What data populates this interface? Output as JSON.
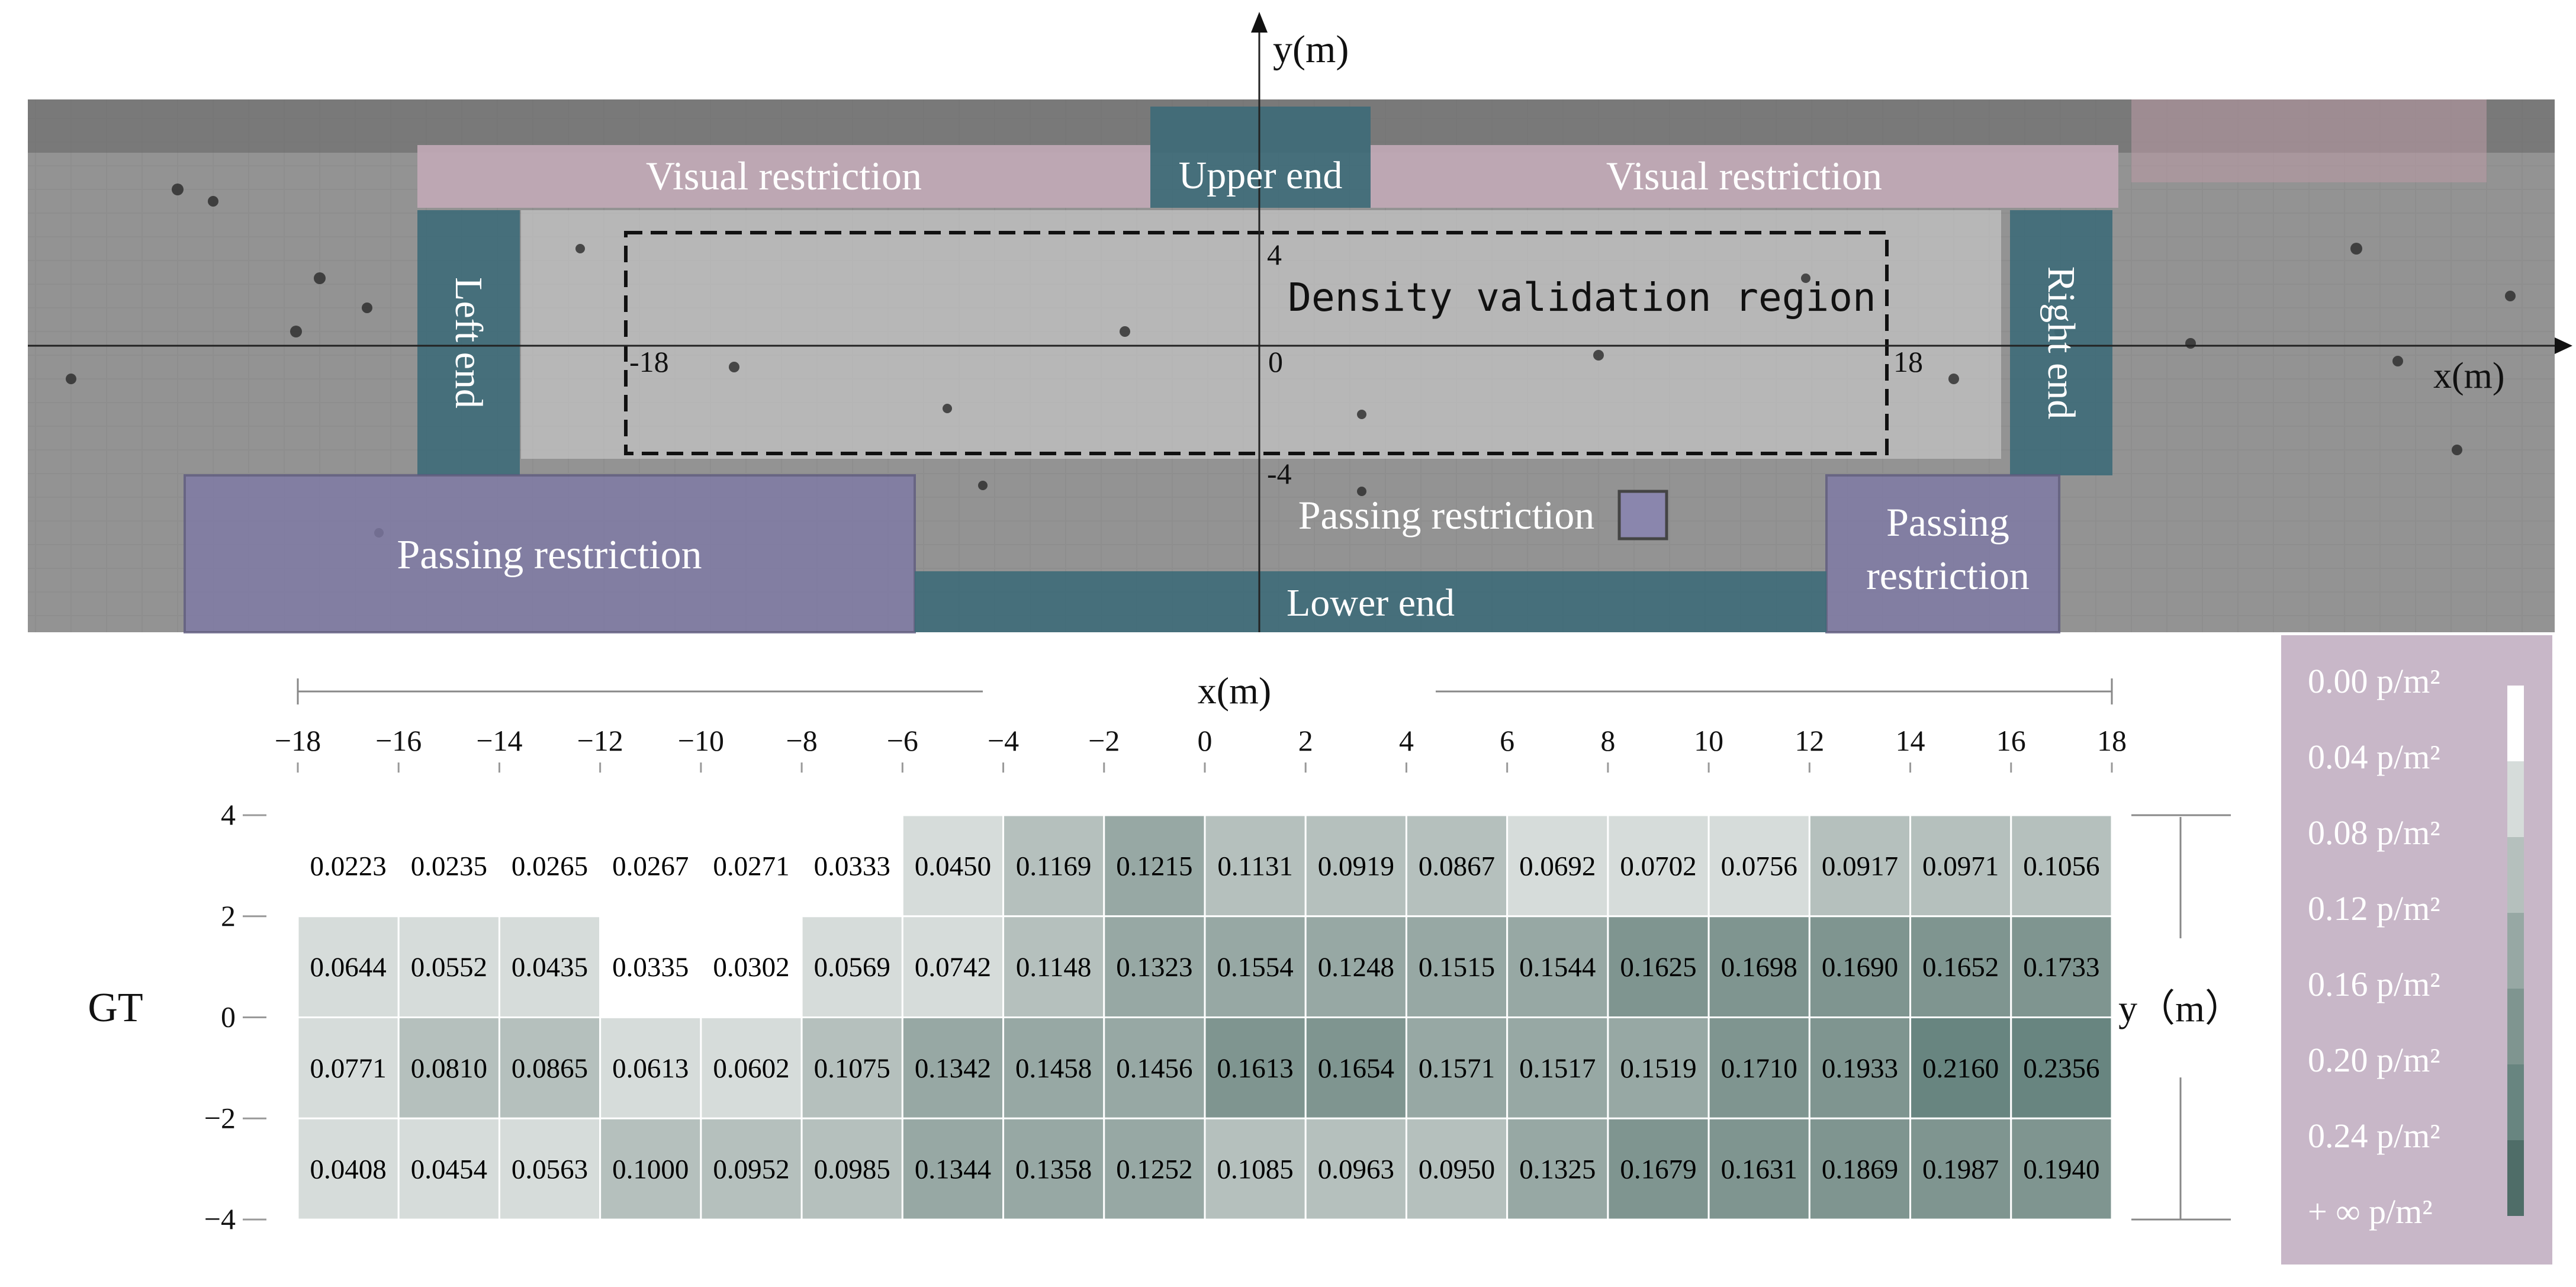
{
  "scene": {
    "y_axis_label": "y(m)",
    "x_axis_label": "x(m)",
    "origin_label": "0",
    "x_neg_label": "-18",
    "x_pos_label": "18",
    "y_pos_label": "4",
    "y_neg_label": "-4",
    "visual_restriction_left": "Visual restriction",
    "visual_restriction_right": "Visual restriction",
    "upper_end": "Upper end",
    "lower_end": "Lower end",
    "left_end": "Left end",
    "right_end": "Right end",
    "density_region": "Density validation region",
    "passing_restriction_left": "Passing restriction",
    "passing_restriction_mid": "Passing restriction",
    "passing_restriction_right_line1": "Passing",
    "passing_restriction_right_line2": "restriction",
    "colors": {
      "blue_zone": "#3f6b78",
      "pink_zone": "#c2aab7",
      "purple_zone": "#7f7aa6",
      "ground": "#8c8c8c"
    }
  },
  "chart_data": {
    "type": "heatmap",
    "row_label": "GT",
    "xlabel": "x(m)",
    "ylabel": "y（m）",
    "x_ticks": [
      "−18",
      "−16",
      "−14",
      "−12",
      "−10",
      "−8",
      "−6",
      "−4",
      "−2",
      "0",
      "2",
      "4",
      "6",
      "8",
      "10",
      "12",
      "14",
      "16",
      "18"
    ],
    "y_ticks": [
      "4",
      "2",
      "0",
      "−2",
      "−4"
    ],
    "xlim": [
      -18,
      18
    ],
    "ylim": [
      -4,
      4
    ],
    "x_bin_edges": [
      -18,
      -16,
      -14,
      -12,
      -10,
      -8,
      -6,
      -4,
      -2,
      0,
      2,
      4,
      6,
      8,
      10,
      12,
      14,
      16,
      18
    ],
    "y_bin_edges": [
      4,
      2,
      0,
      -2,
      -4
    ],
    "values": [
      [
        "0.0223",
        "0.0235",
        "0.0265",
        "0.0267",
        "0.0271",
        "0.0333",
        "0.0450",
        "0.1169",
        "0.1215",
        "0.1131",
        "0.0919",
        "0.0867",
        "0.0692",
        "0.0702",
        "0.0756",
        "0.0917",
        "0.0971",
        "0.1056"
      ],
      [
        "0.0644",
        "0.0552",
        "0.0435",
        "0.0335",
        "0.0302",
        "0.0569",
        "0.0742",
        "0.1148",
        "0.1323",
        "0.1554",
        "0.1248",
        "0.1515",
        "0.1544",
        "0.1625",
        "0.1698",
        "0.1690",
        "0.1652",
        "0.1733"
      ],
      [
        "0.0771",
        "0.0810",
        "0.0865",
        "0.0613",
        "0.0602",
        "0.1075",
        "0.1342",
        "0.1458",
        "0.1456",
        "0.1613",
        "0.1654",
        "0.1571",
        "0.1517",
        "0.1519",
        "0.1710",
        "0.1933",
        "0.2160",
        "0.2356"
      ],
      [
        "0.0408",
        "0.0454",
        "0.0563",
        "0.1000",
        "0.0952",
        "0.0985",
        "0.1344",
        "0.1358",
        "0.1252",
        "0.1085",
        "0.0963",
        "0.0950",
        "0.1325",
        "0.1679",
        "0.1631",
        "0.1869",
        "0.1987",
        "0.1940"
      ]
    ],
    "legend": {
      "labels": [
        "0.00 p/m²",
        "0.04 p/m²",
        "0.08 p/m²",
        "0.12 p/m²",
        "0.16 p/m²",
        "0.20 p/m²",
        "0.24 p/m²",
        "+ ∞ p/m²"
      ],
      "thresholds": [
        0.0,
        0.04,
        0.08,
        0.12,
        0.16,
        0.2,
        0.24
      ],
      "colors": [
        "#ffffff",
        "#d6dcda",
        "#b5c0bd",
        "#97a8a4",
        "#7f9590",
        "#688580",
        "#4f6d68"
      ],
      "background": "#c8b7c8"
    }
  }
}
